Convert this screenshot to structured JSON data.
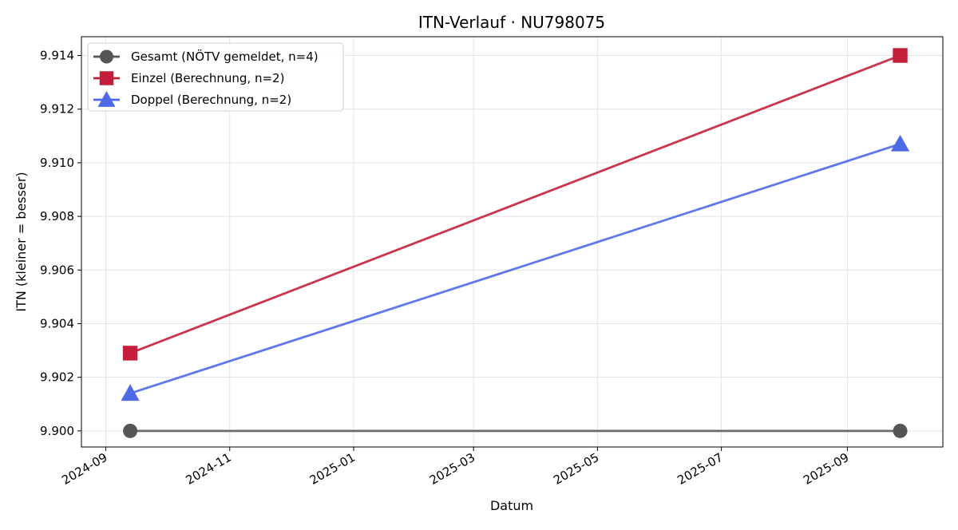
{
  "chart_data": {
    "type": "line",
    "title": "ITN-Verlauf · NU798075",
    "xlabel": "Datum",
    "ylabel": "ITN  (kleiner = besser)",
    "x_axis_type": "date",
    "xlim": [
      "2024-08-20",
      "2025-10-18"
    ],
    "ylim": [
      9.8994,
      9.9147
    ],
    "x_ticks": [
      "2024-09",
      "2024-11",
      "2025-01",
      "2025-03",
      "2025-05",
      "2025-07",
      "2025-09"
    ],
    "y_ticks": [
      "9.900",
      "9.902",
      "9.904",
      "9.906",
      "9.908",
      "9.910",
      "9.912",
      "9.914"
    ],
    "grid": true,
    "legend_position": "top-left",
    "series": [
      {
        "name": "Gesamt (NÖTV gemeldet, n=4)",
        "color": "#555555",
        "marker": "circle",
        "points": [
          {
            "x": "2024-09-13",
            "y": 9.9
          },
          {
            "x": "2025-09-27",
            "y": 9.9
          }
        ]
      },
      {
        "name": "Einzel (Berechnung, n=2)",
        "color": "#c41e3a",
        "marker": "square",
        "points": [
          {
            "x": "2024-09-13",
            "y": 9.9029
          },
          {
            "x": "2025-09-27",
            "y": 9.914
          }
        ]
      },
      {
        "name": "Doppel (Berechnung, n=2)",
        "color": "#4f6ae8",
        "marker": "triangle",
        "points": [
          {
            "x": "2024-09-13",
            "y": 9.9014
          },
          {
            "x": "2025-09-27",
            "y": 9.9107
          }
        ]
      }
    ]
  }
}
